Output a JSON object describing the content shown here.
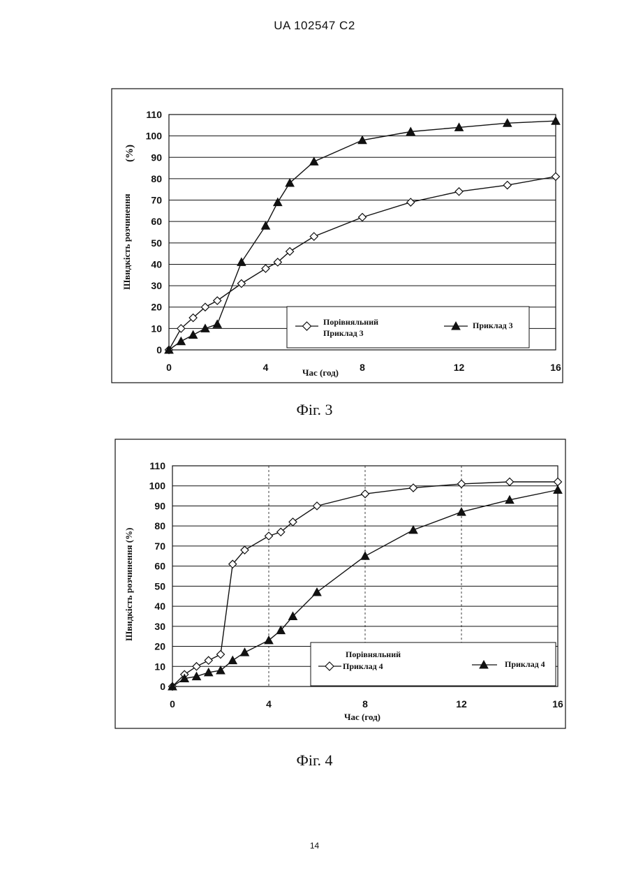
{
  "header": {
    "text": "UA   102547   C2"
  },
  "footer": {
    "page_number": "14"
  },
  "chart_data": [
    {
      "type": "line",
      "caption": "Фіг. 3",
      "xlabel": "Час (год)",
      "ylabel": "Швидкість розчинення",
      "ylabel_unit": "(%)",
      "xlim": [
        0,
        16
      ],
      "ylim": [
        0,
        110
      ],
      "xticks": [
        0,
        4,
        8,
        12,
        16
      ],
      "yticks": [
        0,
        10,
        20,
        30,
        40,
        50,
        60,
        70,
        80,
        90,
        100,
        110
      ],
      "grid": "horizontal",
      "legend": "bottom-right",
      "series": [
        {
          "name": "Порівняльний Приклад 3",
          "legend_lines": [
            "Порівняльний",
            "Приклад 3"
          ],
          "marker": "diamond-open",
          "x": [
            0,
            0.5,
            1,
            1.5,
            2,
            3,
            4,
            4.5,
            5,
            6,
            8,
            10,
            12,
            14,
            16
          ],
          "y": [
            0,
            10,
            15,
            20,
            23,
            31,
            38,
            41,
            46,
            53,
            62,
            69,
            74,
            77,
            81
          ]
        },
        {
          "name": "Приклад 3",
          "legend_lines": [
            "Приклад 3"
          ],
          "marker": "triangle-filled",
          "x": [
            0,
            0.5,
            1,
            1.5,
            2,
            3,
            4,
            4.5,
            5,
            6,
            8,
            10,
            12,
            14,
            16
          ],
          "y": [
            0,
            4,
            7,
            10,
            12,
            41,
            58,
            69,
            78,
            88,
            98,
            102,
            104,
            106,
            107
          ]
        }
      ]
    },
    {
      "type": "line",
      "caption": "Фіг. 4",
      "xlabel": "Час (год)",
      "ylabel": "Швидкість розчинення (%)",
      "ylabel_unit": "",
      "xlim": [
        0,
        16
      ],
      "ylim": [
        0,
        110
      ],
      "xticks": [
        0,
        4,
        8,
        12,
        16
      ],
      "yticks": [
        0,
        10,
        20,
        30,
        40,
        50,
        60,
        70,
        80,
        90,
        100,
        110
      ],
      "grid": "horizontal-and-dashed-vertical",
      "legend": "bottom-right",
      "series": [
        {
          "name": "Порівняльний Приклад 4",
          "legend_lines": [
            "Порівняльний",
            "Приклад 4"
          ],
          "marker": "diamond-open",
          "x": [
            0,
            0.5,
            1,
            1.5,
            2,
            2.5,
            3,
            4,
            4.5,
            5,
            6,
            8,
            10,
            12,
            14,
            16
          ],
          "y": [
            0,
            6,
            10,
            13,
            16,
            61,
            68,
            75,
            77,
            82,
            90,
            96,
            99,
            101,
            102,
            102
          ]
        },
        {
          "name": "Приклад 4",
          "legend_lines": [
            "Приклад 4"
          ],
          "marker": "triangle-filled",
          "x": [
            0,
            0.5,
            1,
            1.5,
            2,
            2.5,
            3,
            4,
            4.5,
            5,
            6,
            8,
            10,
            12,
            14,
            16
          ],
          "y": [
            0,
            4,
            5,
            7,
            8,
            13,
            17,
            23,
            28,
            35,
            47,
            65,
            78,
            87,
            93,
            98
          ]
        }
      ]
    }
  ]
}
